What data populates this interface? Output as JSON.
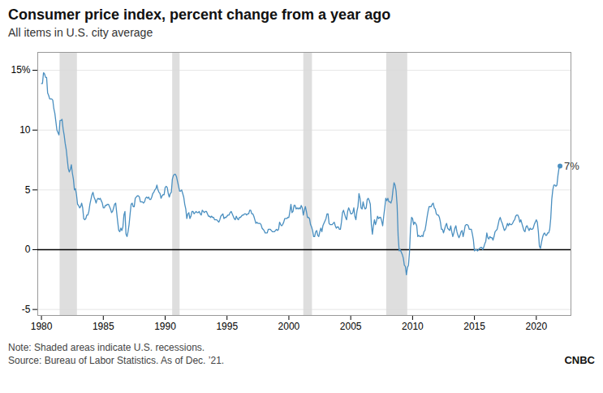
{
  "chart_data": {
    "type": "line",
    "title": "Consumer price index, percent change from a year ago",
    "subtitle": "All items in U.S. city average",
    "note": "Note: Shaded areas indicate U.S. recessions.",
    "source": "Source: Bureau of Labor Statistics. As of Dec. ’21.",
    "logo": "CNBC",
    "color": "#4a8fc0",
    "grid": true,
    "xlim": [
      1979.7,
      2022.8
    ],
    "xticks": [
      1980,
      1985,
      1990,
      1995,
      2000,
      2005,
      2010,
      2015,
      2020
    ],
    "ylim": [
      -5.5,
      16.5
    ],
    "yticks": [
      {
        "value": -5,
        "label": "-5"
      },
      0,
      5,
      10,
      {
        "value": 15,
        "label": "15%"
      }
    ],
    "recessions": [
      [
        1981.5,
        1982.9
      ],
      [
        1990.6,
        1991.2
      ],
      [
        2001.2,
        2001.9
      ],
      [
        2007.9,
        2009.6
      ]
    ],
    "annotations": [
      {
        "text": "7%",
        "x": 2021.92,
        "y": 7.0
      }
    ],
    "x": [
      1980,
      1980.083333,
      1980.166667,
      1980.25,
      1980.333333,
      1980.416667,
      1980.5,
      1980.583333,
      1980.666667,
      1980.75,
      1980.833333,
      1980.916667,
      1981,
      1981.083333,
      1981.166667,
      1981.25,
      1981.333333,
      1981.416667,
      1981.5,
      1981.583333,
      1981.666667,
      1981.75,
      1981.833333,
      1981.916667,
      1982,
      1982.083333,
      1982.166667,
      1982.25,
      1982.333333,
      1982.416667,
      1982.5,
      1982.583333,
      1982.666667,
      1982.75,
      1982.833333,
      1982.916667,
      1983,
      1983.083333,
      1983.166667,
      1983.25,
      1983.333333,
      1983.416667,
      1983.5,
      1983.583333,
      1983.666667,
      1983.75,
      1983.833333,
      1983.916667,
      1984,
      1984.083333,
      1984.166667,
      1984.25,
      1984.333333,
      1984.416667,
      1984.5,
      1984.583333,
      1984.666667,
      1984.75,
      1984.833333,
      1984.916667,
      1985,
      1985.083333,
      1985.166667,
      1985.25,
      1985.333333,
      1985.416667,
      1985.5,
      1985.583333,
      1985.666667,
      1985.75,
      1985.833333,
      1985.916667,
      1986,
      1986.083333,
      1986.166667,
      1986.25,
      1986.333333,
      1986.416667,
      1986.5,
      1986.583333,
      1986.666667,
      1986.75,
      1986.833333,
      1986.916667,
      1987,
      1987.083333,
      1987.166667,
      1987.25,
      1987.333333,
      1987.416667,
      1987.5,
      1987.583333,
      1987.666667,
      1987.75,
      1987.833333,
      1987.916667,
      1988,
      1988.083333,
      1988.166667,
      1988.25,
      1988.333333,
      1988.416667,
      1988.5,
      1988.583333,
      1988.666667,
      1988.75,
      1988.833333,
      1988.916667,
      1989,
      1989.083333,
      1989.166667,
      1989.25,
      1989.333333,
      1989.416667,
      1989.5,
      1989.583333,
      1989.666667,
      1989.75,
      1989.833333,
      1989.916667,
      1990,
      1990.083333,
      1990.166667,
      1990.25,
      1990.333333,
      1990.416667,
      1990.5,
      1990.583333,
      1990.666667,
      1990.75,
      1990.833333,
      1990.916667,
      1991,
      1991.083333,
      1991.166667,
      1991.25,
      1991.333333,
      1991.416667,
      1991.5,
      1991.583333,
      1991.666667,
      1991.75,
      1991.833333,
      1991.916667,
      1992,
      1992.083333,
      1992.166667,
      1992.25,
      1992.333333,
      1992.416667,
      1992.5,
      1992.583333,
      1992.666667,
      1992.75,
      1992.833333,
      1992.916667,
      1993,
      1993.083333,
      1993.166667,
      1993.25,
      1993.333333,
      1993.416667,
      1993.5,
      1993.583333,
      1993.666667,
      1993.75,
      1993.833333,
      1993.916667,
      1994,
      1994.083333,
      1994.166667,
      1994.25,
      1994.333333,
      1994.416667,
      1994.5,
      1994.583333,
      1994.666667,
      1994.75,
      1994.833333,
      1994.916667,
      1995,
      1995.083333,
      1995.166667,
      1995.25,
      1995.333333,
      1995.416667,
      1995.5,
      1995.583333,
      1995.666667,
      1995.75,
      1995.833333,
      1995.916667,
      1996,
      1996.083333,
      1996.166667,
      1996.25,
      1996.333333,
      1996.416667,
      1996.5,
      1996.583333,
      1996.666667,
      1996.75,
      1996.833333,
      1996.916667,
      1997,
      1997.083333,
      1997.166667,
      1997.25,
      1997.333333,
      1997.416667,
      1997.5,
      1997.583333,
      1997.666667,
      1997.75,
      1997.833333,
      1997.916667,
      1998,
      1998.083333,
      1998.166667,
      1998.25,
      1998.333333,
      1998.416667,
      1998.5,
      1998.583333,
      1998.666667,
      1998.75,
      1998.833333,
      1998.916667,
      1999,
      1999.083333,
      1999.166667,
      1999.25,
      1999.333333,
      1999.416667,
      1999.5,
      1999.583333,
      1999.666667,
      1999.75,
      1999.833333,
      1999.916667,
      2000,
      2000.083333,
      2000.166667,
      2000.25,
      2000.333333,
      2000.416667,
      2000.5,
      2000.583333,
      2000.666667,
      2000.75,
      2000.833333,
      2000.916667,
      2001,
      2001.083333,
      2001.166667,
      2001.25,
      2001.333333,
      2001.416667,
      2001.5,
      2001.583333,
      2001.666667,
      2001.75,
      2001.833333,
      2001.916667,
      2002,
      2002.083333,
      2002.166667,
      2002.25,
      2002.333333,
      2002.416667,
      2002.5,
      2002.583333,
      2002.666667,
      2002.75,
      2002.833333,
      2002.916667,
      2003,
      2003.083333,
      2003.166667,
      2003.25,
      2003.333333,
      2003.416667,
      2003.5,
      2003.583333,
      2003.666667,
      2003.75,
      2003.833333,
      2003.916667,
      2004,
      2004.083333,
      2004.166667,
      2004.25,
      2004.333333,
      2004.416667,
      2004.5,
      2004.583333,
      2004.666667,
      2004.75,
      2004.833333,
      2004.916667,
      2005,
      2005.083333,
      2005.166667,
      2005.25,
      2005.333333,
      2005.416667,
      2005.5,
      2005.583333,
      2005.666667,
      2005.75,
      2005.833333,
      2005.916667,
      2006,
      2006.083333,
      2006.166667,
      2006.25,
      2006.333333,
      2006.416667,
      2006.5,
      2006.583333,
      2006.666667,
      2006.75,
      2006.833333,
      2006.916667,
      2007,
      2007.083333,
      2007.166667,
      2007.25,
      2007.333333,
      2007.416667,
      2007.5,
      2007.583333,
      2007.666667,
      2007.75,
      2007.833333,
      2007.916667,
      2008,
      2008.083333,
      2008.166667,
      2008.25,
      2008.333333,
      2008.416667,
      2008.5,
      2008.583333,
      2008.666667,
      2008.75,
      2008.833333,
      2008.916667,
      2009,
      2009.083333,
      2009.166667,
      2009.25,
      2009.333333,
      2009.416667,
      2009.5,
      2009.583333,
      2009.666667,
      2009.75,
      2009.833333,
      2009.916667,
      2010,
      2010.083333,
      2010.166667,
      2010.25,
      2010.333333,
      2010.416667,
      2010.5,
      2010.583333,
      2010.666667,
      2010.75,
      2010.833333,
      2010.916667,
      2011,
      2011.083333,
      2011.166667,
      2011.25,
      2011.333333,
      2011.416667,
      2011.5,
      2011.583333,
      2011.666667,
      2011.75,
      2011.833333,
      2011.916667,
      2012,
      2012.083333,
      2012.166667,
      2012.25,
      2012.333333,
      2012.416667,
      2012.5,
      2012.583333,
      2012.666667,
      2012.75,
      2012.833333,
      2012.916667,
      2013,
      2013.083333,
      2013.166667,
      2013.25,
      2013.333333,
      2013.416667,
      2013.5,
      2013.583333,
      2013.666667,
      2013.75,
      2013.833333,
      2013.916667,
      2014,
      2014.083333,
      2014.166667,
      2014.25,
      2014.333333,
      2014.416667,
      2014.5,
      2014.583333,
      2014.666667,
      2014.75,
      2014.833333,
      2014.916667,
      2015,
      2015.083333,
      2015.166667,
      2015.25,
      2015.333333,
      2015.416667,
      2015.5,
      2015.583333,
      2015.666667,
      2015.75,
      2015.833333,
      2015.916667,
      2016,
      2016.083333,
      2016.166667,
      2016.25,
      2016.333333,
      2016.416667,
      2016.5,
      2016.583333,
      2016.666667,
      2016.75,
      2016.833333,
      2016.916667,
      2017,
      2017.083333,
      2017.166667,
      2017.25,
      2017.333333,
      2017.416667,
      2017.5,
      2017.583333,
      2017.666667,
      2017.75,
      2017.833333,
      2017.916667,
      2018,
      2018.083333,
      2018.166667,
      2018.25,
      2018.333333,
      2018.416667,
      2018.5,
      2018.583333,
      2018.666667,
      2018.75,
      2018.833333,
      2018.916667,
      2019,
      2019.083333,
      2019.166667,
      2019.25,
      2019.333333,
      2019.416667,
      2019.5,
      2019.583333,
      2019.666667,
      2019.75,
      2019.833333,
      2019.916667,
      2020,
      2020.083333,
      2020.166667,
      2020.25,
      2020.333333,
      2020.416667,
      2020.5,
      2020.583333,
      2020.666667,
      2020.75,
      2020.833333,
      2020.916667,
      2021,
      2021.083333,
      2021.166667,
      2021.25,
      2021.333333,
      2021.416667,
      2021.5,
      2021.583333,
      2021.666667,
      2021.75,
      2021.833333,
      2021.916667
    ],
    "values": [
      13.9,
      13.9,
      14.8,
      14.7,
      14.4,
      14.4,
      13.1,
      12.9,
      12.6,
      12.6,
      12.6,
      12.5,
      11.8,
      11.4,
      10.7,
      10.0,
      9.8,
      9.6,
      10.8,
      10.8,
      10.9,
      10.1,
      9.6,
      8.9,
      8.4,
      7.6,
      6.8,
      6.5,
      6.7,
      7.1,
      6.4,
      5.9,
      5.0,
      5.1,
      4.6,
      3.8,
      3.7,
      3.5,
      3.6,
      3.9,
      3.5,
      2.6,
      2.5,
      2.6,
      2.9,
      2.9,
      3.2,
      3.8,
      4.2,
      4.6,
      4.8,
      4.4,
      4.2,
      3.9,
      4.2,
      4.3,
      4.2,
      4.3,
      4.1,
      3.9,
      3.5,
      3.5,
      3.7,
      3.7,
      3.8,
      3.8,
      3.6,
      3.4,
      3.1,
      3.2,
      3.5,
      3.8,
      3.9,
      3.1,
      2.3,
      1.6,
      1.5,
      1.8,
      1.6,
      1.9,
      2.9,
      3.2,
      1.3,
      1.1,
      1.5,
      2.1,
      3.0,
      3.8,
      3.9,
      3.6,
      3.6,
      4.3,
      4.4,
      4.5,
      4.5,
      4.4,
      4.0,
      4.0,
      4.0,
      3.9,
      4.0,
      4.3,
      4.4,
      4.3,
      4.4,
      4.2,
      4.2,
      4.4,
      4.7,
      4.8,
      5.0,
      5.1,
      5.4,
      5.0,
      4.8,
      4.7,
      4.3,
      4.5,
      4.6,
      4.6,
      5.2,
      5.3,
      5.2,
      4.7,
      4.4,
      4.7,
      4.8,
      5.9,
      6.2,
      6.3,
      6.3,
      6.1,
      5.7,
      5.3,
      4.9,
      4.9,
      5.0,
      4.7,
      4.4,
      3.8,
      3.4,
      2.6,
      3.0,
      3.1,
      2.6,
      2.8,
      3.2,
      3.2,
      3.0,
      3.1,
      3.2,
      3.1,
      3.1,
      3.2,
      3.0,
      2.9,
      3.3,
      3.2,
      3.1,
      3.2,
      3.2,
      3.0,
      2.8,
      2.8,
      2.7,
      2.8,
      2.7,
      2.7,
      2.5,
      2.5,
      2.5,
      2.4,
      2.3,
      2.5,
      2.8,
      2.9,
      3.0,
      2.6,
      2.7,
      2.7,
      2.8,
      2.9,
      2.9,
      3.1,
      3.2,
      3.0,
      2.8,
      2.6,
      2.5,
      2.8,
      2.6,
      2.5,
      2.7,
      2.7,
      2.8,
      2.9,
      2.9,
      3.0,
      3.0,
      2.9,
      3.0,
      3.0,
      3.3,
      3.3,
      3.0,
      3.0,
      2.8,
      2.5,
      2.2,
      2.3,
      2.2,
      2.2,
      2.2,
      2.1,
      1.8,
      1.7,
      1.6,
      1.4,
      1.4,
      1.4,
      1.7,
      1.7,
      1.7,
      1.6,
      1.5,
      1.5,
      1.5,
      1.6,
      1.7,
      1.6,
      1.7,
      2.3,
      2.1,
      2.0,
      2.1,
      2.3,
      2.6,
      2.6,
      2.6,
      2.7,
      2.7,
      3.2,
      3.8,
      3.1,
      3.2,
      3.7,
      3.7,
      3.4,
      3.5,
      3.4,
      3.5,
      3.4,
      3.7,
      3.5,
      2.9,
      3.3,
      3.6,
      3.2,
      2.7,
      2.7,
      2.6,
      2.1,
      1.9,
      1.6,
      1.1,
      1.1,
      1.5,
      1.6,
      1.2,
      1.1,
      1.5,
      1.8,
      1.5,
      2.0,
      2.2,
      2.4,
      2.6,
      3.0,
      3.0,
      2.2,
      2.1,
      2.1,
      2.1,
      2.2,
      2.3,
      2.0,
      1.8,
      1.9,
      1.9,
      1.7,
      1.7,
      2.3,
      3.1,
      3.3,
      3.0,
      2.7,
      2.5,
      3.2,
      3.5,
      3.3,
      3.0,
      3.0,
      3.1,
      3.5,
      2.8,
      2.5,
      3.2,
      3.6,
      4.7,
      4.3,
      3.5,
      3.4,
      4.0,
      3.6,
      3.4,
      3.5,
      4.2,
      4.3,
      4.1,
      3.8,
      2.1,
      1.3,
      2.0,
      2.5,
      2.1,
      2.4,
      2.8,
      2.6,
      2.7,
      2.7,
      2.4,
      2.0,
      2.8,
      3.5,
      4.3,
      4.1,
      4.3,
      4.0,
      4.0,
      3.9,
      4.2,
      5.0,
      5.6,
      5.4,
      4.9,
      3.7,
      1.1,
      -0.1,
      0.0,
      -0.2,
      -0.4,
      -0.7,
      -1.3,
      -1.4,
      -2.1,
      -1.5,
      -1.3,
      -0.2,
      1.8,
      2.7,
      2.6,
      2.1,
      2.3,
      2.2,
      2.0,
      1.1,
      1.2,
      1.1,
      1.1,
      1.2,
      1.1,
      1.5,
      1.6,
      2.1,
      2.7,
      3.2,
      3.6,
      3.6,
      3.6,
      3.8,
      3.9,
      3.5,
      3.4,
      3.0,
      2.9,
      2.9,
      2.7,
      2.3,
      1.7,
      1.7,
      1.4,
      1.7,
      2.0,
      2.2,
      1.8,
      1.7,
      1.6,
      2.0,
      1.5,
      1.1,
      1.4,
      1.8,
      2.0,
      1.5,
      1.2,
      1.0,
      1.2,
      1.5,
      1.6,
      1.1,
      1.5,
      2.0,
      2.1,
      2.1,
      2.0,
      1.7,
      1.7,
      1.7,
      1.3,
      0.8,
      -0.1,
      0.0,
      0.0,
      -0.1,
      0.0,
      0.1,
      0.2,
      0.2,
      0.0,
      0.2,
      0.5,
      0.7,
      1.4,
      1.0,
      0.9,
      1.1,
      1.0,
      1.0,
      0.8,
      1.1,
      1.5,
      1.6,
      1.7,
      2.1,
      2.5,
      2.7,
      2.4,
      2.2,
      1.9,
      1.6,
      1.7,
      1.9,
      2.2,
      2.0,
      2.2,
      2.1,
      2.1,
      2.2,
      2.4,
      2.5,
      2.8,
      2.9,
      2.9,
      2.7,
      2.3,
      2.5,
      2.2,
      1.9,
      1.6,
      1.5,
      1.9,
      2.0,
      1.8,
      1.6,
      1.8,
      1.7,
      1.7,
      1.8,
      2.1,
      2.3,
      2.5,
      2.3,
      1.5,
      0.3,
      0.1,
      0.6,
      1.0,
      1.3,
      1.4,
      1.2,
      1.2,
      1.4,
      1.4,
      1.7,
      2.6,
      4.2,
      5.0,
      5.4,
      5.4,
      5.3,
      5.4,
      6.2,
      6.8,
      7.0
    ]
  }
}
